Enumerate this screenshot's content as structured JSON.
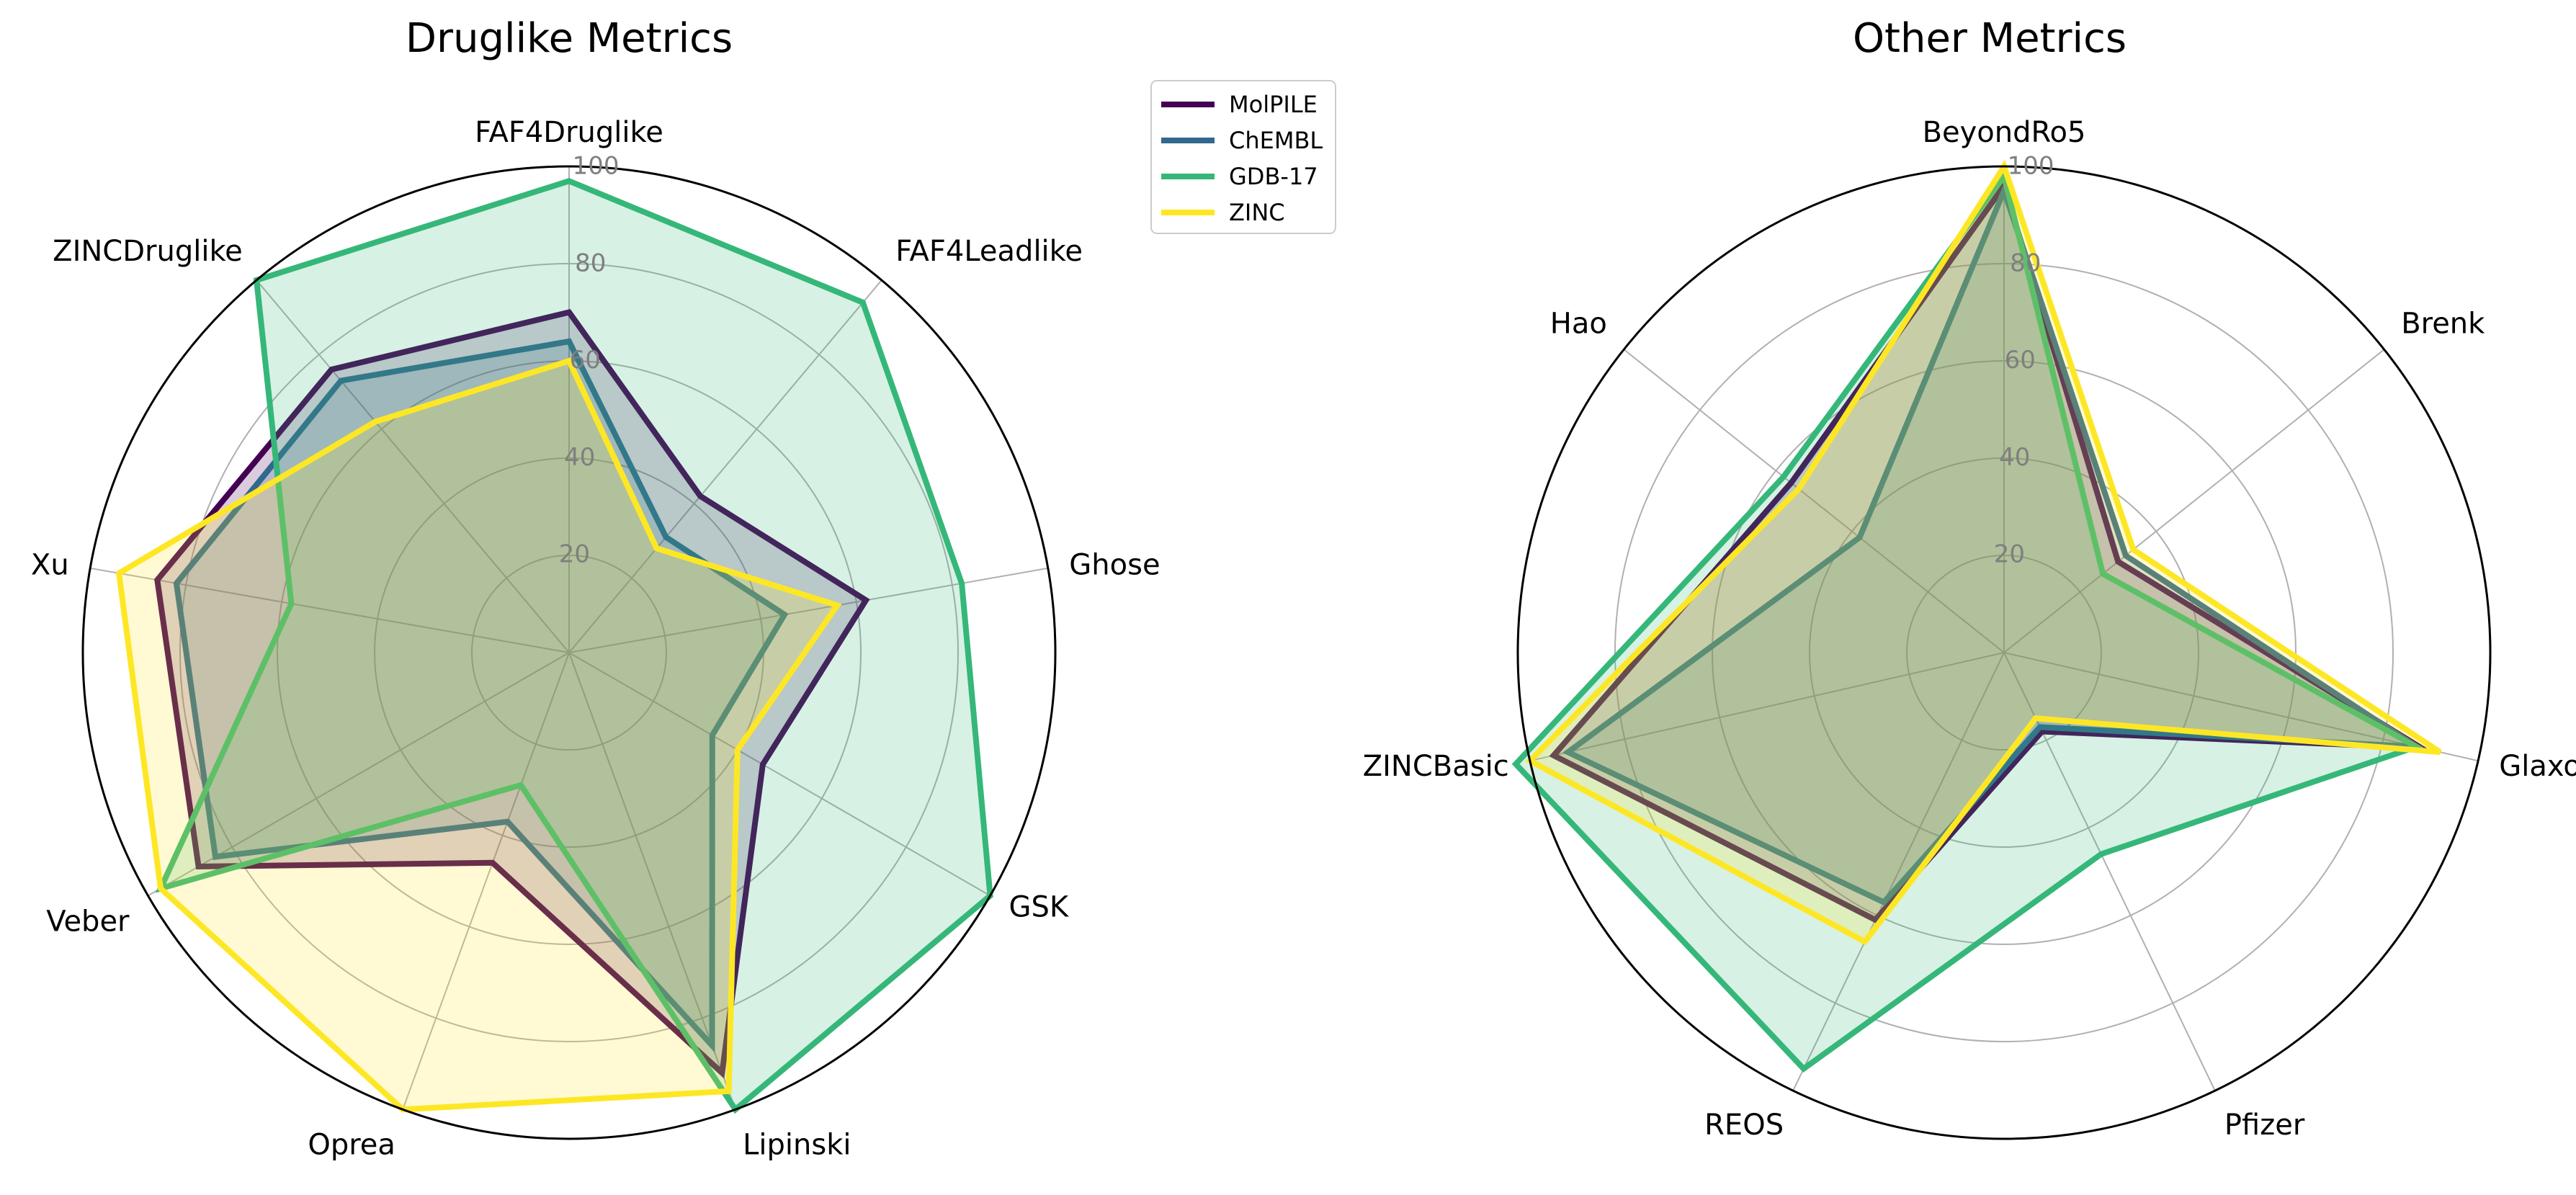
{
  "chart_data": [
    {
      "type": "radar",
      "title": "Druglike Metrics",
      "rlim": [
        0,
        100
      ],
      "rticks": [
        20,
        40,
        60,
        80,
        100
      ],
      "categories": [
        "FAF4Druglike",
        "FAF4Leadlike",
        "Ghose",
        "GSK",
        "Lipinski",
        "Oprea",
        "Veber",
        "Xu",
        "ZINCDruglike"
      ],
      "series": [
        {
          "name": "MolPILE",
          "color": "#440154",
          "values": [
            70,
            42,
            62,
            46,
            92,
            46,
            88,
            86,
            76
          ]
        },
        {
          "name": "ChEMBL",
          "color": "#31688e",
          "values": [
            64,
            31,
            45,
            34,
            86,
            37,
            84,
            82,
            73
          ]
        },
        {
          "name": "GDB-17",
          "color": "#35b779",
          "values": [
            97,
            94,
            82,
            100,
            100,
            29,
            97,
            58,
            100
          ]
        },
        {
          "name": "ZINC",
          "color": "#fde725",
          "values": [
            60,
            28,
            56,
            40,
            96,
            100,
            97,
            94,
            62
          ]
        }
      ]
    },
    {
      "type": "radar",
      "title": "Other Metrics",
      "rlim": [
        0,
        100
      ],
      "rticks": [
        20,
        40,
        60,
        80,
        100
      ],
      "categories": [
        "BeyondRo5",
        "Brenk",
        "Glaxo",
        "Pfizer",
        "REOS",
        "ZINCBasic",
        "Hao"
      ],
      "series": [
        {
          "name": "MolPILE",
          "color": "#440154",
          "values": [
            96,
            30,
            88,
            18,
            61,
            95,
            56
          ]
        },
        {
          "name": "ChEMBL",
          "color": "#31688e",
          "values": [
            95,
            32,
            87,
            17,
            57,
            92,
            38
          ]
        },
        {
          "name": "GDB-17",
          "color": "#35b779",
          "values": [
            98,
            26,
            87,
            46,
            95,
            103,
            58
          ]
        },
        {
          "name": "ZINC",
          "color": "#fde725",
          "values": [
            100,
            34,
            92,
            15,
            66,
            100,
            54
          ]
        }
      ]
    }
  ],
  "legend": {
    "placement": "top-center",
    "entries": [
      "MolPILE",
      "ChEMBL",
      "GDB-17",
      "ZINC"
    ]
  }
}
